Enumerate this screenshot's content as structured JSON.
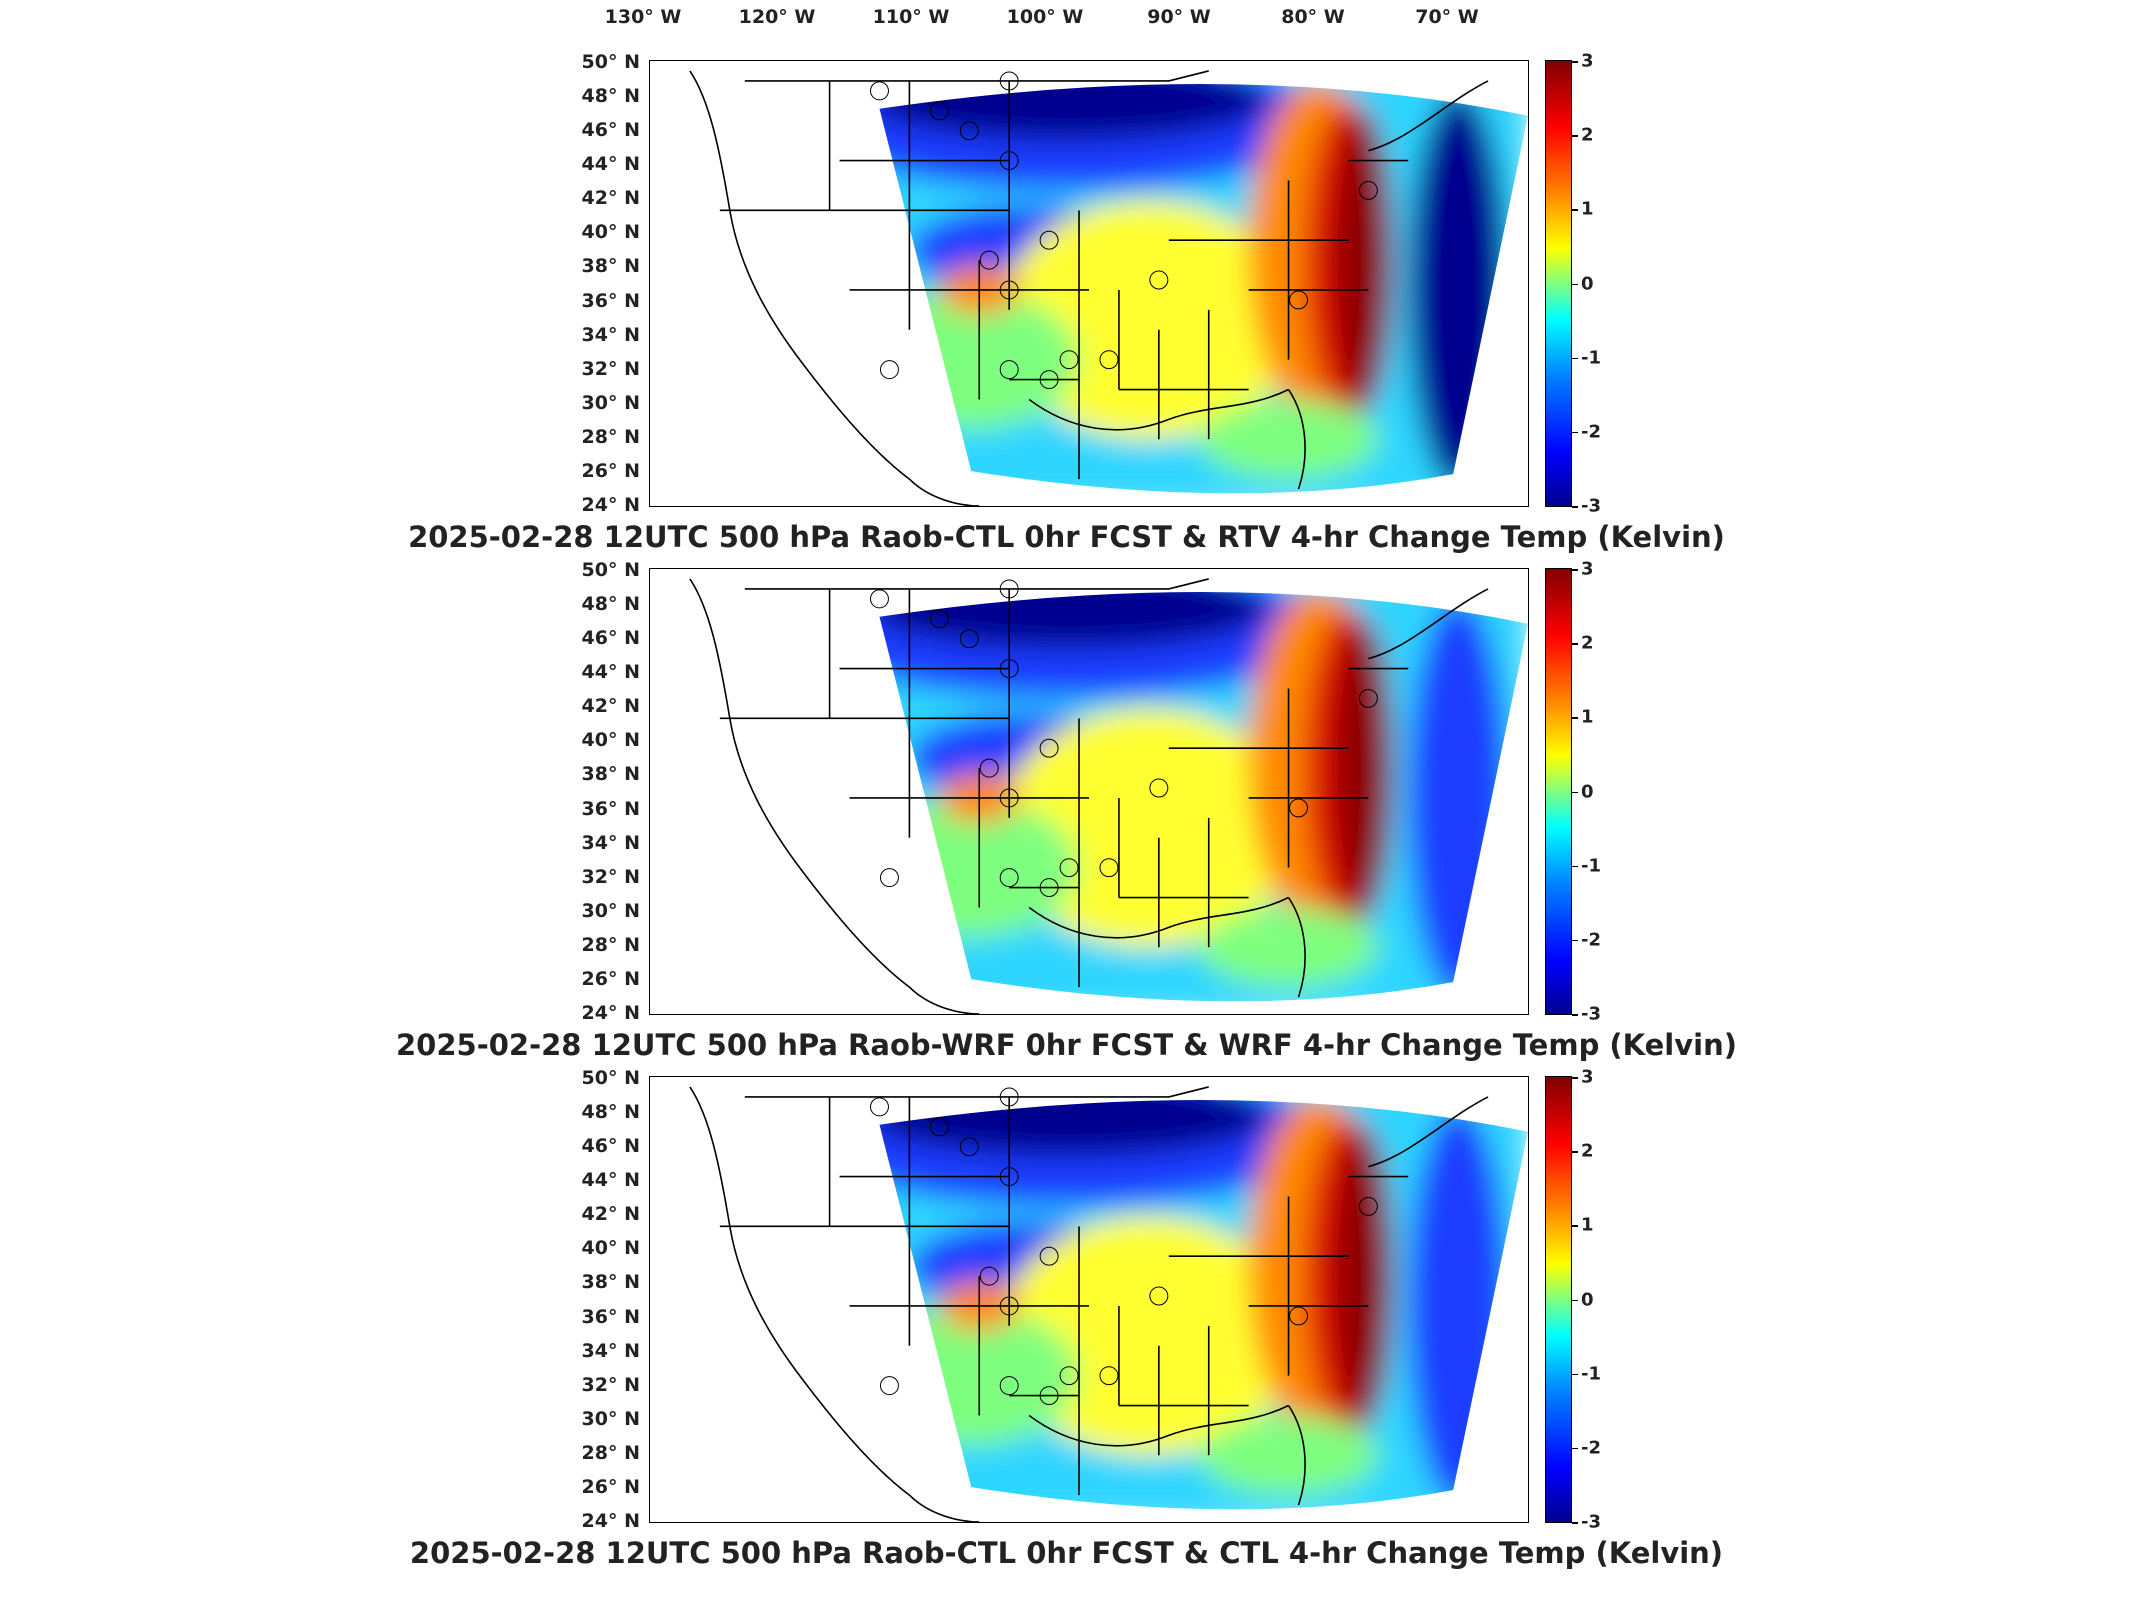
{
  "longitude_labels": [
    "130° W",
    "120° W",
    "110° W",
    "100° W",
    "90° W",
    "80° W",
    "70° W"
  ],
  "latitude_labels": [
    "50° N",
    "48° N",
    "46° N",
    "44° N",
    "42° N",
    "40° N",
    "38° N",
    "36° N",
    "34° N",
    "32° N",
    "30° N",
    "28° N",
    "26° N",
    "24° N"
  ],
  "colorbar": {
    "ticks": [
      "3",
      "2",
      "1",
      "0",
      "-1",
      "-2",
      "-3"
    ],
    "range": [
      -3,
      3
    ],
    "colormap": "jet"
  },
  "panels": [
    {
      "title": "2025-02-28 12UTC 500 hPa Raob-CTL 0hr FCST & RTV 4-hr Change Temp (Kelvin)"
    },
    {
      "title": "2025-02-28 12UTC 500 hPa Raob-WRF 0hr FCST & WRF 4-hr Change Temp (Kelvin)"
    },
    {
      "title": "2025-02-28 12UTC 500 hPa Raob-CTL 0hr FCST & CTL 4-hr Change Temp (Kelvin)"
    }
  ],
  "colors": {
    "deep_blue": "#00008f",
    "blue": "#1e3cff",
    "cyan": "#2fd6ff",
    "green": "#7fff7f",
    "yellow": "#ffff30",
    "orange": "#ff8a00",
    "red": "#e01000",
    "dark_red": "#8b0000"
  }
}
